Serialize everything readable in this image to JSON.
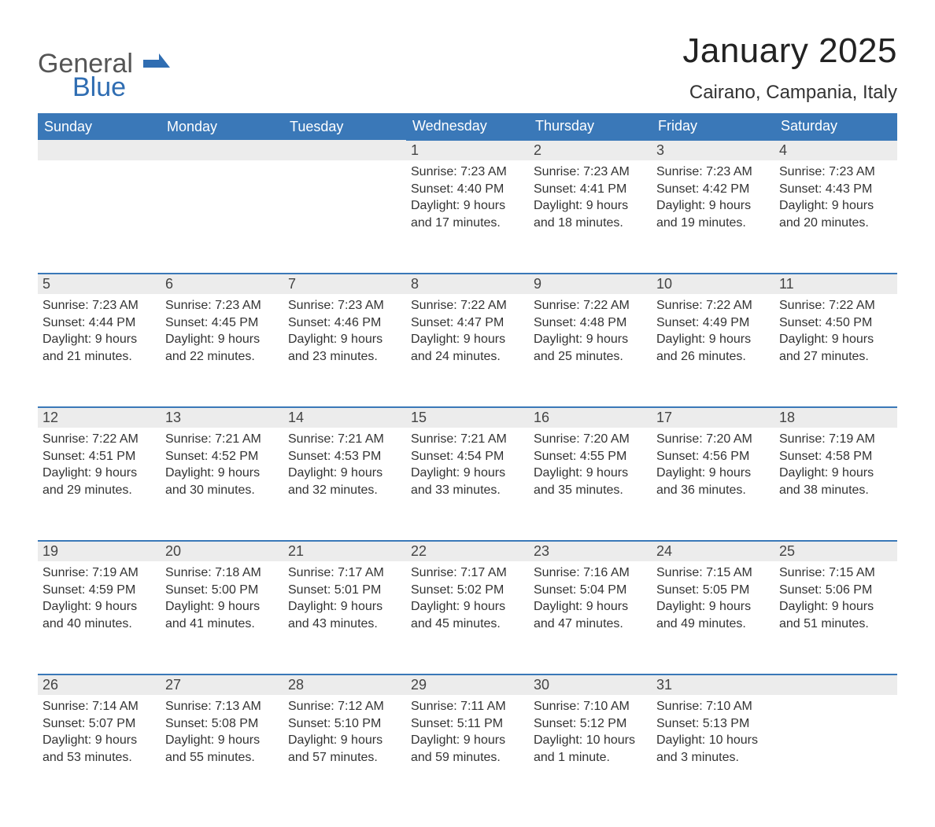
{
  "logo": {
    "line1": "General",
    "line2": "Blue",
    "flag_color": "#2f6db2"
  },
  "title": "January 2025",
  "location": "Cairano, Campania, Italy",
  "colors": {
    "header_bg": "#3a78b8",
    "header_text": "#ffffff",
    "daynum_bg": "#ececec",
    "daynum_border": "#3a78b8",
    "body_text": "#333333",
    "page_bg": "#ffffff"
  },
  "day_headers": [
    "Sunday",
    "Monday",
    "Tuesday",
    "Wednesday",
    "Thursday",
    "Friday",
    "Saturday"
  ],
  "weeks": [
    [
      null,
      null,
      null,
      {
        "n": "1",
        "sunrise": "Sunrise: 7:23 AM",
        "sunset": "Sunset: 4:40 PM",
        "daylight": "Daylight: 9 hours and 17 minutes."
      },
      {
        "n": "2",
        "sunrise": "Sunrise: 7:23 AM",
        "sunset": "Sunset: 4:41 PM",
        "daylight": "Daylight: 9 hours and 18 minutes."
      },
      {
        "n": "3",
        "sunrise": "Sunrise: 7:23 AM",
        "sunset": "Sunset: 4:42 PM",
        "daylight": "Daylight: 9 hours and 19 minutes."
      },
      {
        "n": "4",
        "sunrise": "Sunrise: 7:23 AM",
        "sunset": "Sunset: 4:43 PM",
        "daylight": "Daylight: 9 hours and 20 minutes."
      }
    ],
    [
      {
        "n": "5",
        "sunrise": "Sunrise: 7:23 AM",
        "sunset": "Sunset: 4:44 PM",
        "daylight": "Daylight: 9 hours and 21 minutes."
      },
      {
        "n": "6",
        "sunrise": "Sunrise: 7:23 AM",
        "sunset": "Sunset: 4:45 PM",
        "daylight": "Daylight: 9 hours and 22 minutes."
      },
      {
        "n": "7",
        "sunrise": "Sunrise: 7:23 AM",
        "sunset": "Sunset: 4:46 PM",
        "daylight": "Daylight: 9 hours and 23 minutes."
      },
      {
        "n": "8",
        "sunrise": "Sunrise: 7:22 AM",
        "sunset": "Sunset: 4:47 PM",
        "daylight": "Daylight: 9 hours and 24 minutes."
      },
      {
        "n": "9",
        "sunrise": "Sunrise: 7:22 AM",
        "sunset": "Sunset: 4:48 PM",
        "daylight": "Daylight: 9 hours and 25 minutes."
      },
      {
        "n": "10",
        "sunrise": "Sunrise: 7:22 AM",
        "sunset": "Sunset: 4:49 PM",
        "daylight": "Daylight: 9 hours and 26 minutes."
      },
      {
        "n": "11",
        "sunrise": "Sunrise: 7:22 AM",
        "sunset": "Sunset: 4:50 PM",
        "daylight": "Daylight: 9 hours and 27 minutes."
      }
    ],
    [
      {
        "n": "12",
        "sunrise": "Sunrise: 7:22 AM",
        "sunset": "Sunset: 4:51 PM",
        "daylight": "Daylight: 9 hours and 29 minutes."
      },
      {
        "n": "13",
        "sunrise": "Sunrise: 7:21 AM",
        "sunset": "Sunset: 4:52 PM",
        "daylight": "Daylight: 9 hours and 30 minutes."
      },
      {
        "n": "14",
        "sunrise": "Sunrise: 7:21 AM",
        "sunset": "Sunset: 4:53 PM",
        "daylight": "Daylight: 9 hours and 32 minutes."
      },
      {
        "n": "15",
        "sunrise": "Sunrise: 7:21 AM",
        "sunset": "Sunset: 4:54 PM",
        "daylight": "Daylight: 9 hours and 33 minutes."
      },
      {
        "n": "16",
        "sunrise": "Sunrise: 7:20 AM",
        "sunset": "Sunset: 4:55 PM",
        "daylight": "Daylight: 9 hours and 35 minutes."
      },
      {
        "n": "17",
        "sunrise": "Sunrise: 7:20 AM",
        "sunset": "Sunset: 4:56 PM",
        "daylight": "Daylight: 9 hours and 36 minutes."
      },
      {
        "n": "18",
        "sunrise": "Sunrise: 7:19 AM",
        "sunset": "Sunset: 4:58 PM",
        "daylight": "Daylight: 9 hours and 38 minutes."
      }
    ],
    [
      {
        "n": "19",
        "sunrise": "Sunrise: 7:19 AM",
        "sunset": "Sunset: 4:59 PM",
        "daylight": "Daylight: 9 hours and 40 minutes."
      },
      {
        "n": "20",
        "sunrise": "Sunrise: 7:18 AM",
        "sunset": "Sunset: 5:00 PM",
        "daylight": "Daylight: 9 hours and 41 minutes."
      },
      {
        "n": "21",
        "sunrise": "Sunrise: 7:17 AM",
        "sunset": "Sunset: 5:01 PM",
        "daylight": "Daylight: 9 hours and 43 minutes."
      },
      {
        "n": "22",
        "sunrise": "Sunrise: 7:17 AM",
        "sunset": "Sunset: 5:02 PM",
        "daylight": "Daylight: 9 hours and 45 minutes."
      },
      {
        "n": "23",
        "sunrise": "Sunrise: 7:16 AM",
        "sunset": "Sunset: 5:04 PM",
        "daylight": "Daylight: 9 hours and 47 minutes."
      },
      {
        "n": "24",
        "sunrise": "Sunrise: 7:15 AM",
        "sunset": "Sunset: 5:05 PM",
        "daylight": "Daylight: 9 hours and 49 minutes."
      },
      {
        "n": "25",
        "sunrise": "Sunrise: 7:15 AM",
        "sunset": "Sunset: 5:06 PM",
        "daylight": "Daylight: 9 hours and 51 minutes."
      }
    ],
    [
      {
        "n": "26",
        "sunrise": "Sunrise: 7:14 AM",
        "sunset": "Sunset: 5:07 PM",
        "daylight": "Daylight: 9 hours and 53 minutes."
      },
      {
        "n": "27",
        "sunrise": "Sunrise: 7:13 AM",
        "sunset": "Sunset: 5:08 PM",
        "daylight": "Daylight: 9 hours and 55 minutes."
      },
      {
        "n": "28",
        "sunrise": "Sunrise: 7:12 AM",
        "sunset": "Sunset: 5:10 PM",
        "daylight": "Daylight: 9 hours and 57 minutes."
      },
      {
        "n": "29",
        "sunrise": "Sunrise: 7:11 AM",
        "sunset": "Sunset: 5:11 PM",
        "daylight": "Daylight: 9 hours and 59 minutes."
      },
      {
        "n": "30",
        "sunrise": "Sunrise: 7:10 AM",
        "sunset": "Sunset: 5:12 PM",
        "daylight": "Daylight: 10 hours and 1 minute."
      },
      {
        "n": "31",
        "sunrise": "Sunrise: 7:10 AM",
        "sunset": "Sunset: 5:13 PM",
        "daylight": "Daylight: 10 hours and 3 minutes."
      },
      null
    ]
  ]
}
